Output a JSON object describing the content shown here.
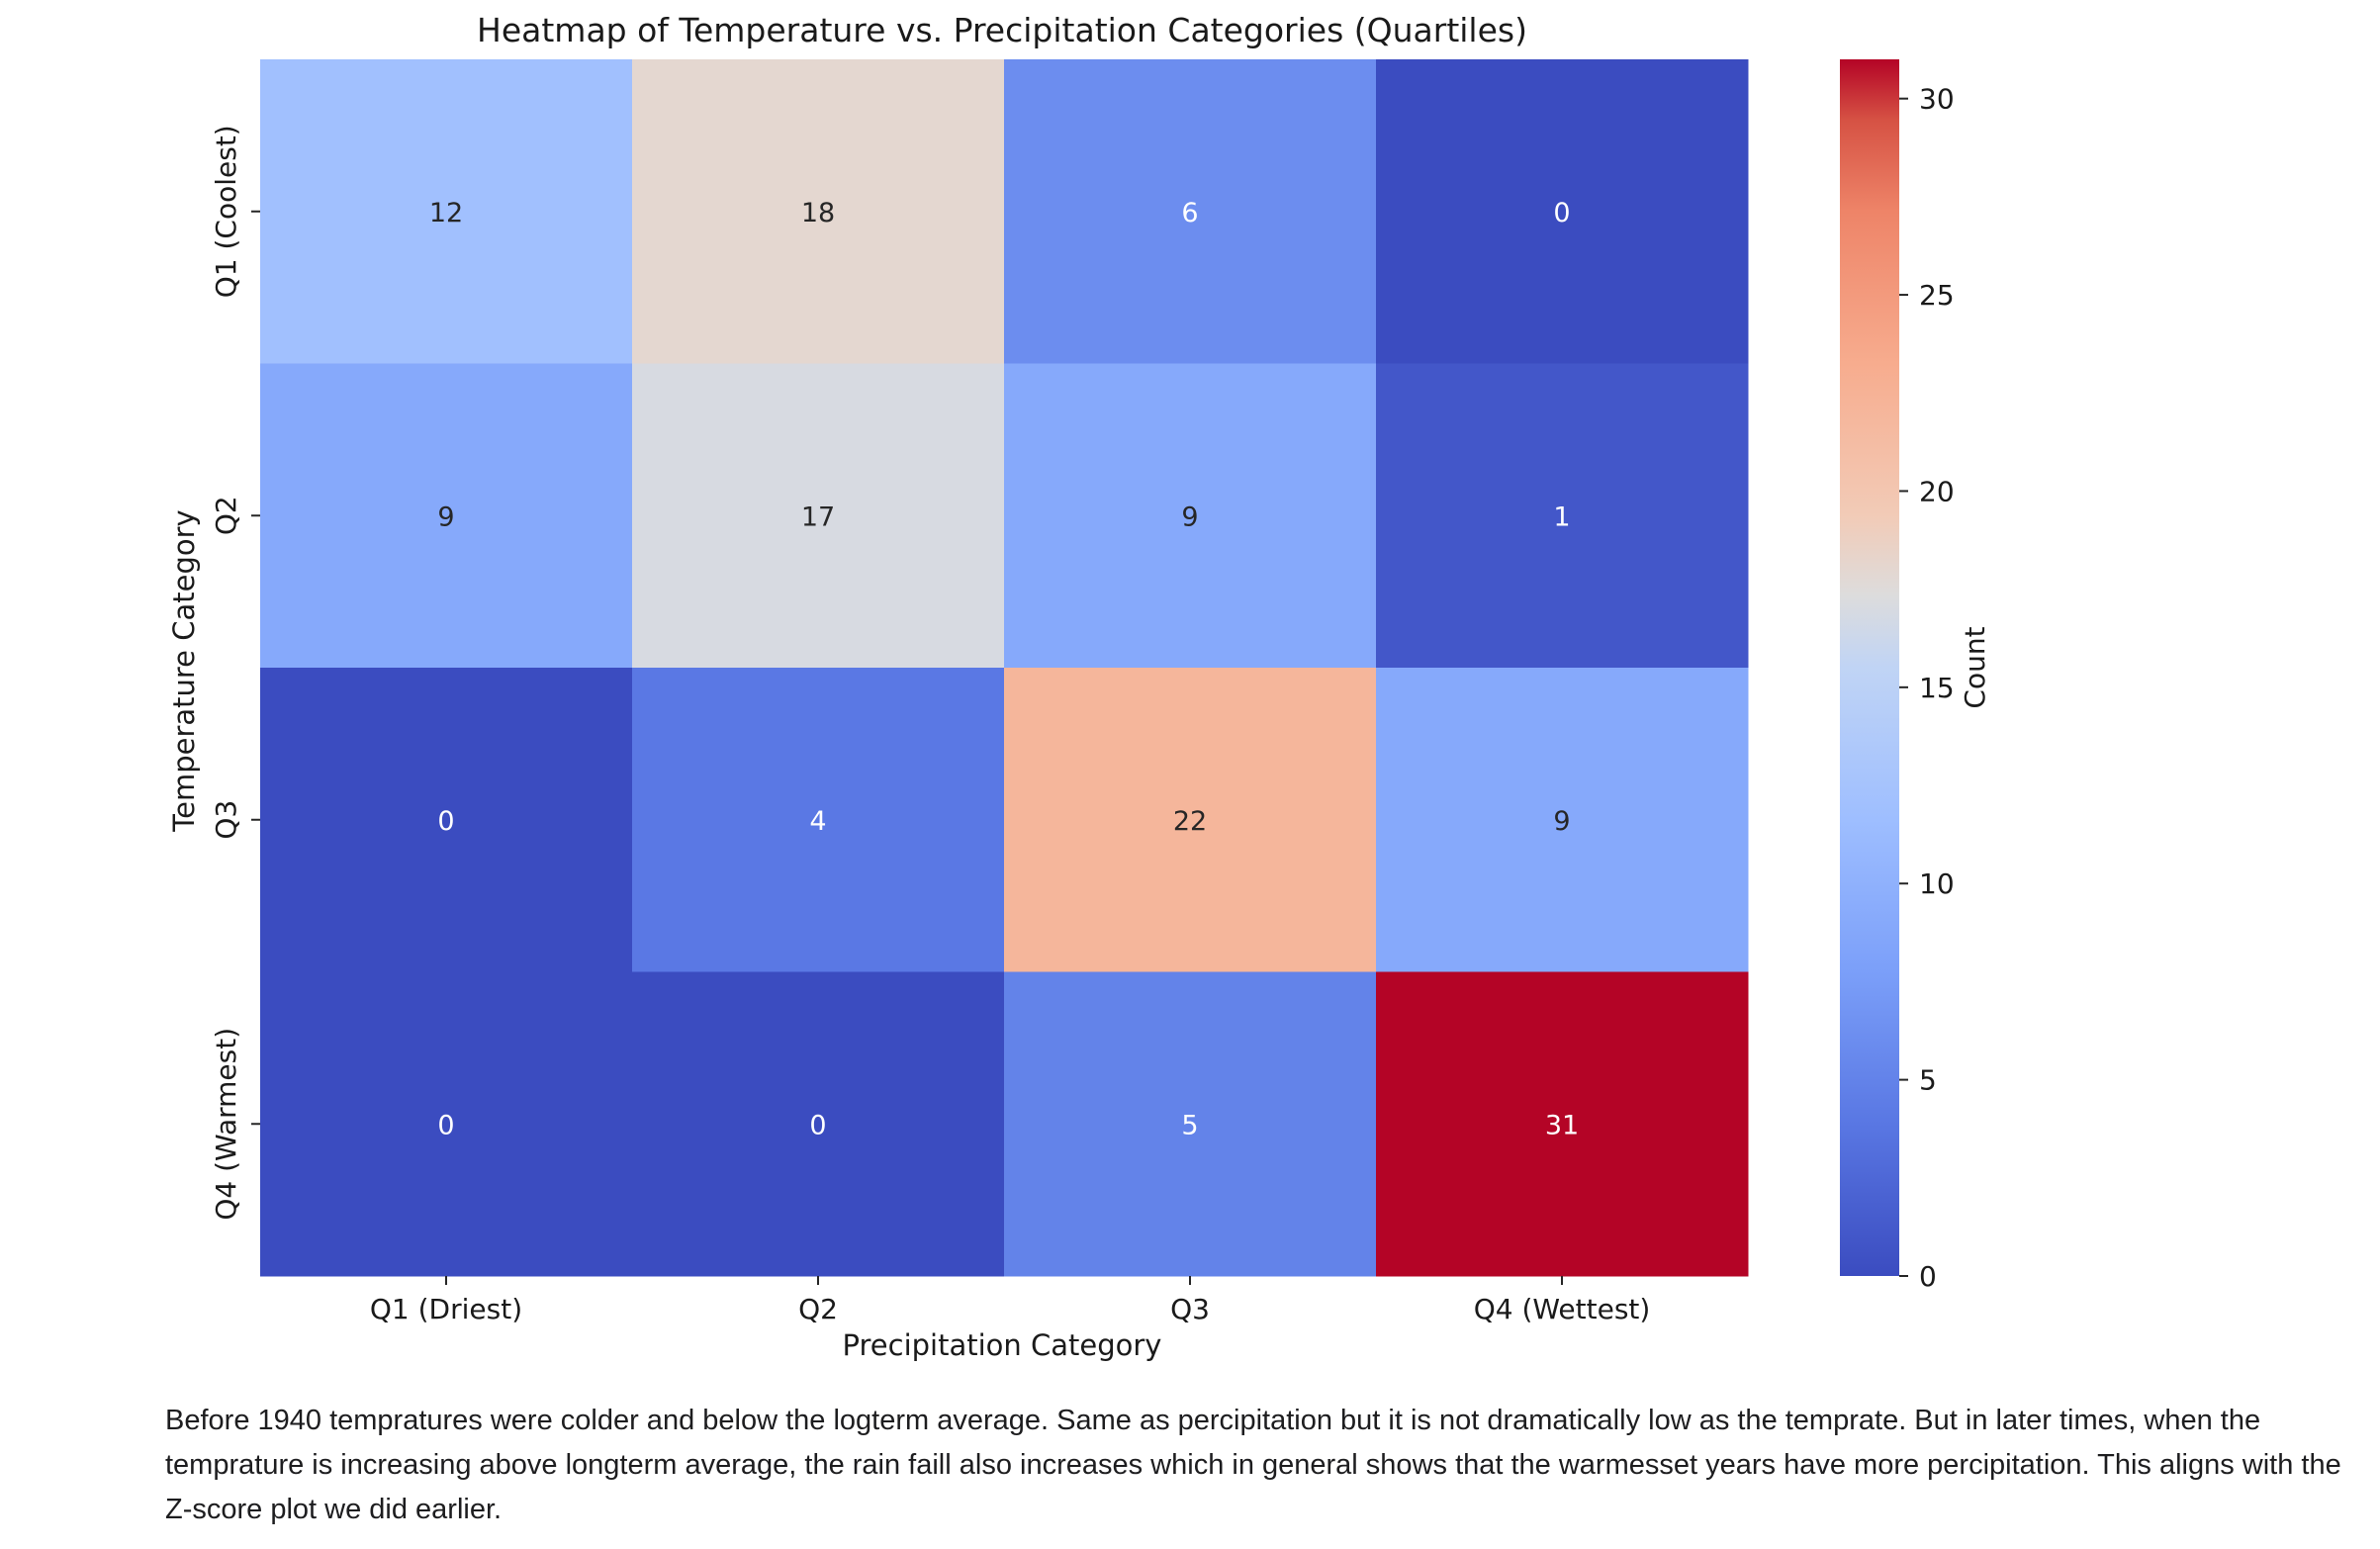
{
  "chart_data": {
    "type": "heatmap",
    "title": "Heatmap of Temperature vs. Precipitation Categories (Quartiles)",
    "xlabel": "Precipitation Category",
    "ylabel": "Temperature Category",
    "x_categories": [
      "Q1 (Driest)",
      "Q2",
      "Q3",
      "Q4 (Wettest)"
    ],
    "y_categories": [
      "Q1 (Coolest)",
      "Q2",
      "Q3",
      "Q4 (Warmest)"
    ],
    "values": [
      [
        12,
        18,
        6,
        0
      ],
      [
        9,
        17,
        9,
        1
      ],
      [
        0,
        4,
        22,
        9
      ],
      [
        0,
        0,
        5,
        31
      ]
    ],
    "colormap": "coolwarm",
    "colorbar": {
      "label": "Count",
      "min": 0,
      "max": 31,
      "ticks": [
        0,
        5,
        10,
        15,
        20,
        25,
        30
      ],
      "placement": "right"
    },
    "annotations": true
  },
  "caption": {
    "text": "Before 1940 tempratures were colder and below the logterm average. Same as percipitation but it is not dramatically low as the temprate. But in later times, when the temprature is increasing above longterm average, the rain faill also increases which in general shows that the warmesset years have more percipitation. This aligns with the Z-score plot we did earlier."
  }
}
